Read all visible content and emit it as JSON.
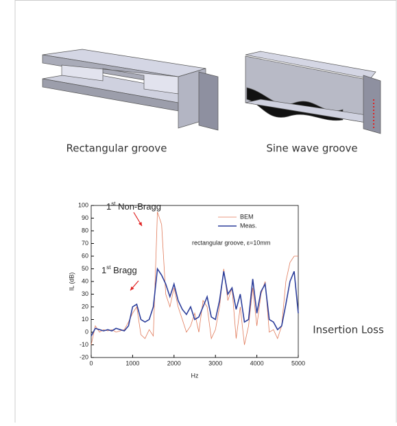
{
  "figures": [
    {
      "caption": "Rectangular groove"
    },
    {
      "caption": "Sine wave groove"
    }
  ],
  "side_label": "Insertion Loss",
  "chart_data": {
    "type": "line",
    "x_label": "Hz",
    "y_label": "IL (dB)",
    "annotations": [
      {
        "number": "1",
        "sup": "st",
        "rest": " Non-Bragg"
      },
      {
        "number": "1",
        "sup": "st",
        "rest": " Bragg"
      }
    ],
    "note": "rectangular groove, ε=10mm",
    "x": [
      0,
      100,
      200,
      300,
      400,
      500,
      600,
      700,
      800,
      900,
      1000,
      1100,
      1200,
      1300,
      1400,
      1500,
      1600,
      1700,
      1800,
      1900,
      2000,
      2100,
      2200,
      2300,
      2400,
      2500,
      2600,
      2700,
      2800,
      2900,
      3000,
      3100,
      3200,
      3300,
      3400,
      3500,
      3600,
      3700,
      3800,
      3900,
      4000,
      4100,
      4200,
      4300,
      4400,
      4500,
      4600,
      4700,
      4800,
      4900,
      5000
    ],
    "series": [
      {
        "name": "BEM",
        "color": "#e07a5a",
        "width": 0.8,
        "values": [
          -10,
          5,
          0,
          2,
          1,
          2,
          0,
          1,
          2,
          8,
          15,
          20,
          -2,
          -5,
          2,
          -3,
          95,
          85,
          30,
          20,
          35,
          20,
          10,
          0,
          5,
          15,
          0,
          25,
          20,
          -5,
          2,
          20,
          50,
          25,
          35,
          -5,
          20,
          -10,
          5,
          35,
          5,
          30,
          40,
          0,
          2,
          -5,
          5,
          40,
          55,
          60,
          60
        ]
      },
      {
        "name": "Meas.",
        "color": "#2b3d9a",
        "width": 1.6,
        "values": [
          -3,
          3,
          2,
          1,
          2,
          1,
          3,
          2,
          1,
          5,
          20,
          22,
          10,
          8,
          10,
          20,
          50,
          45,
          38,
          28,
          38,
          25,
          18,
          14,
          20,
          10,
          12,
          20,
          28,
          12,
          10,
          25,
          48,
          30,
          35,
          18,
          30,
          8,
          10,
          42,
          15,
          32,
          38,
          10,
          8,
          2,
          5,
          22,
          40,
          48,
          15
        ]
      }
    ],
    "xlim": [
      0,
      5000
    ],
    "xticks": [
      0,
      1000,
      2000,
      3000,
      4000,
      5000
    ],
    "ylim": [
      -20,
      100
    ],
    "yticks": [
      -20,
      -10,
      0,
      10,
      20,
      30,
      40,
      50,
      60,
      70,
      80,
      90,
      100
    ],
    "legend": "upper-right"
  }
}
